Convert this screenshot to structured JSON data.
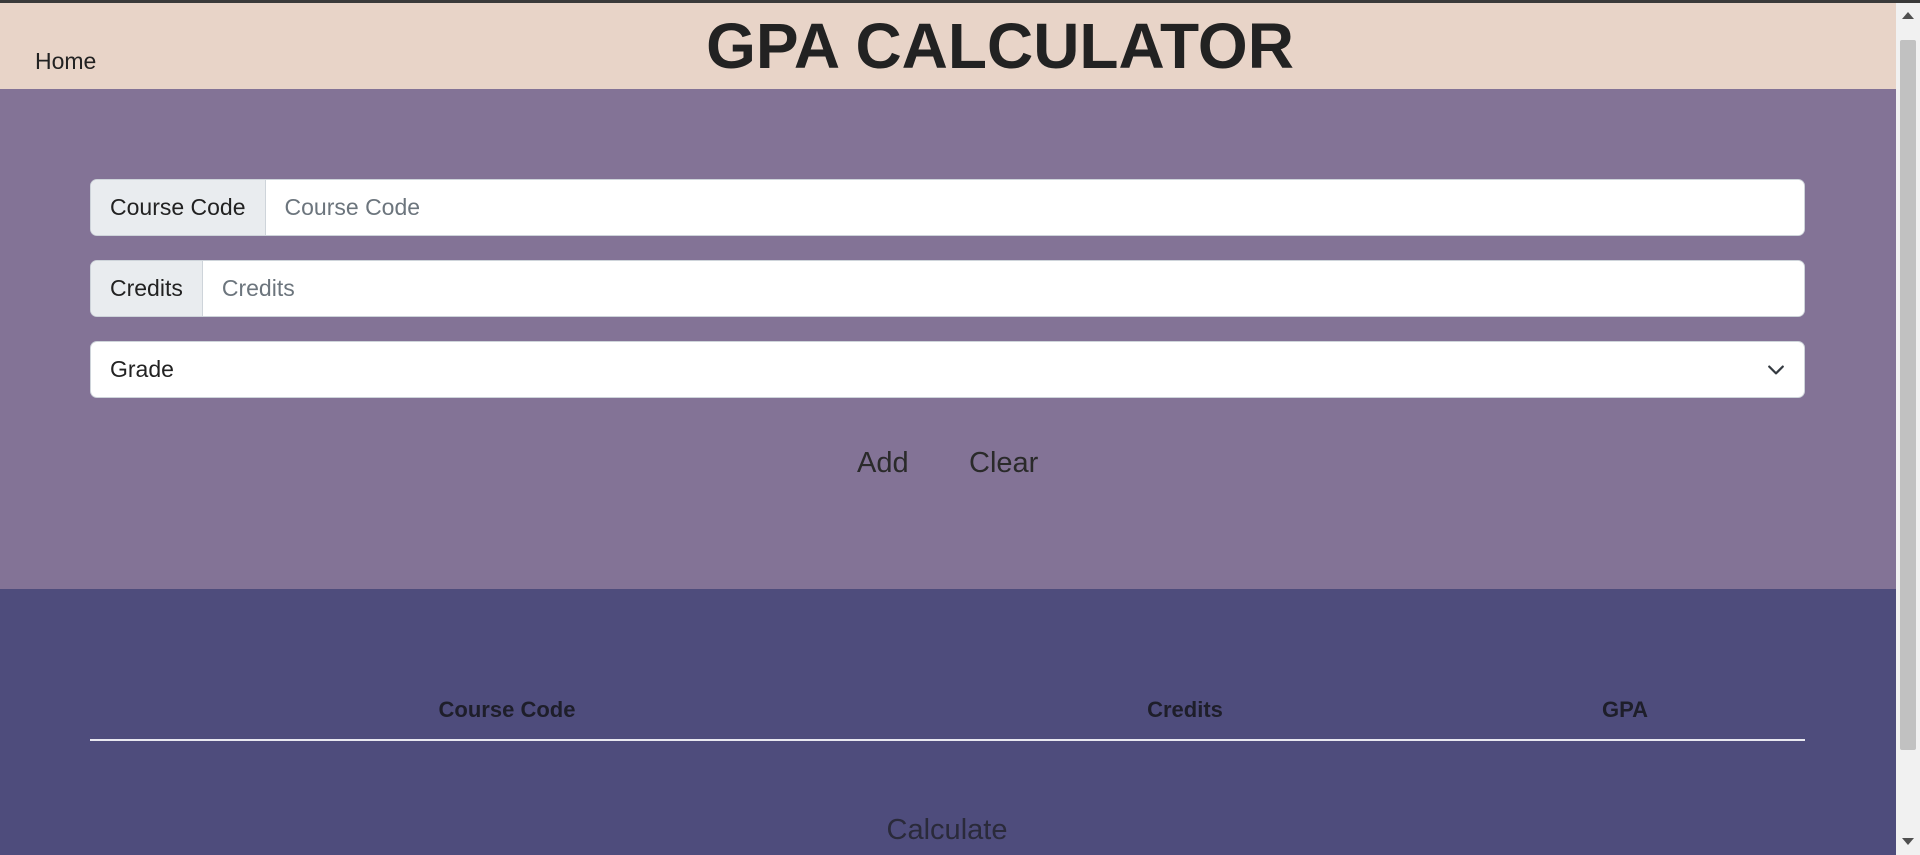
{
  "nav": {
    "home_label": "Home",
    "title": "GPA CALCULATOR"
  },
  "form": {
    "course_code": {
      "label": "Course Code",
      "placeholder": "Course Code",
      "value": ""
    },
    "credits": {
      "label": "Credits",
      "placeholder": "Credits",
      "value": ""
    },
    "grade": {
      "selected": "Grade"
    },
    "add_label": "Add",
    "clear_label": "Clear"
  },
  "table": {
    "headers": [
      "Course Code",
      "Credits",
      "GPA"
    ],
    "rows": []
  },
  "calculate_label": "Calculate",
  "colors": {
    "navbar_bg": "#e8d4c8",
    "form_bg": "#837396",
    "table_bg": "#4e4c7c"
  },
  "icons": {
    "select_caret": "chevron-down-icon",
    "scroll_up": "scroll-up-arrow-icon",
    "scroll_down": "scroll-down-arrow-icon"
  }
}
